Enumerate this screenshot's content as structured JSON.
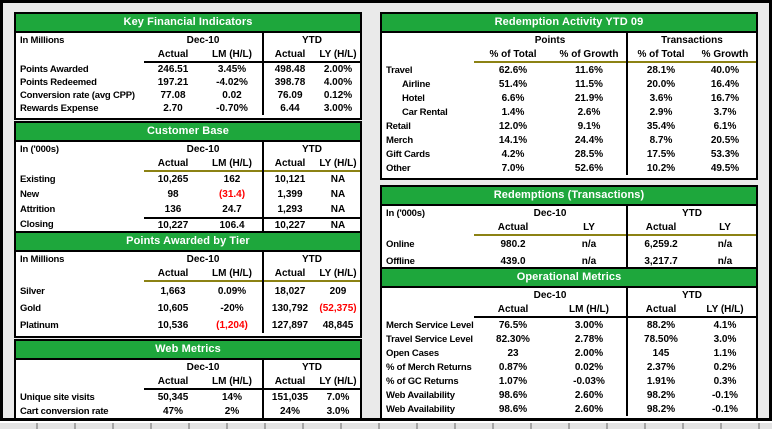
{
  "dashboard": {
    "accent_green": "#1EA73C",
    "underline_olive": "#8C8214",
    "negative_red": "#FF0000",
    "background_gray": "#EAEAEA"
  },
  "tables": [
    {
      "id": "key-financial-indicators",
      "title": "Key Financial Indicators",
      "unit_label": "In Millions",
      "groups": [
        "Dec-10",
        "YTD"
      ],
      "col_headers": [
        "Actual",
        "LM (H/L)",
        "Actual",
        "LY (H/L)"
      ],
      "rows": [
        {
          "label": "Points Awarded",
          "cells": [
            "246.51",
            "3.45%",
            "498.48",
            "2.00%"
          ]
        },
        {
          "label": "Points Redeemed",
          "cells": [
            "197.21",
            "-4.02%",
            "398.78",
            "4.00%"
          ]
        },
        {
          "label": "Conversion rate (avg CPP)",
          "cells": [
            "77.08",
            "0.02",
            "76.09",
            "0.12%"
          ]
        },
        {
          "label": "Rewards Expense",
          "cells": [
            "2.70",
            "-0.70%",
            "6.44",
            "3.00%"
          ]
        }
      ]
    },
    {
      "id": "customer-base",
      "title": "Customer Base",
      "unit_label": "In ('000s)",
      "groups": [
        "Dec-10",
        "YTD"
      ],
      "col_headers": [
        "Actual",
        "LM (H/L)",
        "Actual",
        "LY (H/L)"
      ],
      "rows": [
        {
          "label": "Existing",
          "cells": [
            "10,265",
            "162",
            "10,121",
            "NA"
          ]
        },
        {
          "label": "New",
          "cells": [
            "98",
            "(31.4)",
            "1,399",
            "NA"
          ]
        },
        {
          "label": "Attrition",
          "cells": [
            "136",
            "24.7",
            "1,293",
            "NA"
          ]
        },
        {
          "label": "Closing",
          "sum_top": true,
          "cells": [
            "10,227",
            "106.4",
            "10,227",
            "NA"
          ]
        }
      ]
    },
    {
      "id": "points-awarded-by-tier",
      "title": "Points Awarded by Tier",
      "unit_label": "In Millions",
      "groups": [
        "Dec-10",
        "YTD"
      ],
      "col_headers": [
        "Actual",
        "LM (H/L)",
        "Actual",
        "LY (H/L)"
      ],
      "rows": [
        {
          "label": "Silver",
          "cells": [
            "1,663",
            "0.09%",
            "18,027",
            "209"
          ]
        },
        {
          "label": "Gold",
          "cells": [
            "10,605",
            "-20%",
            "130,792",
            "(52,375)"
          ]
        },
        {
          "label": "Platinum",
          "cells": [
            "10,536",
            "(1,204)",
            "127,897",
            "48,845"
          ]
        }
      ]
    },
    {
      "id": "web-metrics",
      "title": "Web Metrics",
      "unit_label": "",
      "groups": [
        "Dec-10",
        "YTD"
      ],
      "col_headers": [
        "Actual",
        "LM (H/L)",
        "Actual",
        "LY (H/L)"
      ],
      "rows": [
        {
          "label": "Unique site visits",
          "cells": [
            "50,345",
            "14%",
            "151,035",
            "7.0%"
          ]
        },
        {
          "label": "Cart conversion rate",
          "cells": [
            "47%",
            "2%",
            "24%",
            "3.0%"
          ]
        }
      ]
    },
    {
      "id": "redemption-activity-ytd-09",
      "title": "Redemption Activity YTD 09",
      "unit_label": "",
      "groups": [
        "Points",
        "Transactions"
      ],
      "col_headers": [
        "% of Total",
        "% of Growth",
        "% of Total",
        "% Growth"
      ],
      "rows": [
        {
          "label": "Travel",
          "cells": [
            "62.6%",
            "11.6%",
            "28.1%",
            "40.0%"
          ]
        },
        {
          "label": "Airline",
          "indent": true,
          "cells": [
            "51.4%",
            "11.5%",
            "20.0%",
            "16.4%"
          ]
        },
        {
          "label": "Hotel",
          "indent": true,
          "cells": [
            "6.6%",
            "21.9%",
            "3.6%",
            "16.7%"
          ]
        },
        {
          "label": "Car Rental",
          "indent": true,
          "cells": [
            "1.4%",
            "2.6%",
            "2.9%",
            "3.7%"
          ]
        },
        {
          "label": "Retail",
          "cells": [
            "12.0%",
            "9.1%",
            "35.4%",
            "6.1%"
          ]
        },
        {
          "label": "Merch",
          "cells": [
            "14.1%",
            "24.4%",
            "8.7%",
            "20.5%"
          ]
        },
        {
          "label": "Gift Cards",
          "cells": [
            "4.2%",
            "28.5%",
            "17.5%",
            "53.3%"
          ]
        },
        {
          "label": "Other",
          "cells": [
            "7.0%",
            "52.6%",
            "10.2%",
            "49.5%"
          ]
        }
      ]
    },
    {
      "id": "redemptions-transactions",
      "title": "Redemptions (Transactions)",
      "unit_label": "In ('000s)",
      "groups": [
        "Dec-10",
        "YTD"
      ],
      "col_headers": [
        "Actual",
        "LY",
        "Actual",
        "LY"
      ],
      "rows": [
        {
          "label": "Online",
          "cells": [
            "980.2",
            "n/a",
            "6,259.2",
            "n/a"
          ]
        },
        {
          "label": "Offline",
          "cells": [
            "439.0",
            "n/a",
            "3,217.7",
            "n/a"
          ]
        }
      ]
    },
    {
      "id": "operational-metrics",
      "title": "Operational Metrics",
      "unit_label": "",
      "groups": [
        "Dec-10",
        "YTD"
      ],
      "col_headers": [
        "Actual",
        "LM (H/L)",
        "Actual",
        "LY (H/L)"
      ],
      "rows": [
        {
          "label": "Merch Service Level",
          "cells": [
            "76.5%",
            "3.00%",
            "88.2%",
            "4.1%"
          ]
        },
        {
          "label": "Travel Service Level",
          "cells": [
            "82.30%",
            "2.78%",
            "78.50%",
            "3.0%"
          ]
        },
        {
          "label": "Open Cases",
          "cells": [
            "23",
            "2.00%",
            "145",
            "1.1%"
          ]
        },
        {
          "label": "% of Merch Returns",
          "cells": [
            "0.87%",
            "0.02%",
            "2.37%",
            "0.2%"
          ]
        },
        {
          "label": "% of GC Returns",
          "cells": [
            "1.07%",
            "-0.03%",
            "1.91%",
            "0.3%"
          ]
        },
        {
          "label": "Web Availability",
          "cells": [
            "98.6%",
            "2.60%",
            "98.2%",
            "-0.1%"
          ]
        },
        {
          "label": "Web Availability",
          "cells": [
            "98.6%",
            "2.60%",
            "98.2%",
            "-0.1%"
          ]
        }
      ]
    }
  ]
}
